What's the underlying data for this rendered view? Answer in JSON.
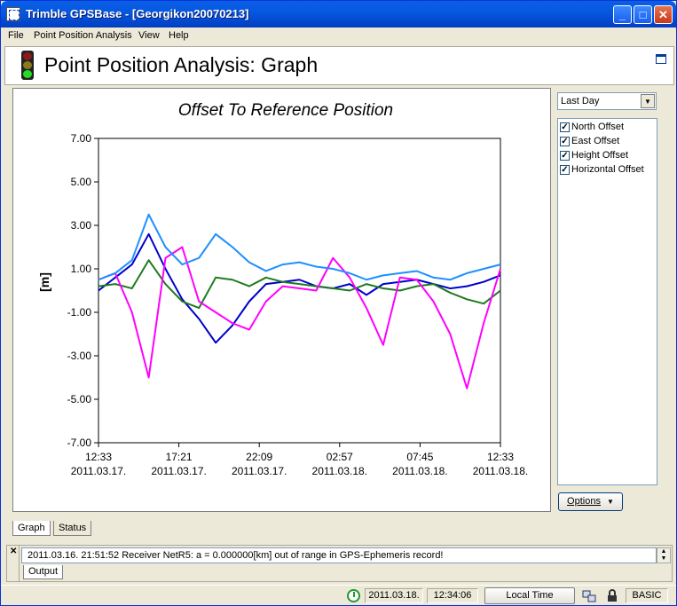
{
  "window": {
    "title": "Trimble GPSBase - [Georgikon20070213]",
    "minimize": "_",
    "maximize": "□",
    "close": "✕"
  },
  "menu": {
    "items": [
      {
        "label": "File"
      },
      {
        "label": "Point Position Analysis"
      },
      {
        "label": "View"
      },
      {
        "label": "Help"
      }
    ]
  },
  "header": {
    "title": "Point Position Analysis: Graph"
  },
  "side": {
    "range_select": "Last Day",
    "series": [
      {
        "label": "North Offset",
        "checked": true
      },
      {
        "label": "East Offset",
        "checked": true
      },
      {
        "label": "Height Offset",
        "checked": true
      },
      {
        "label": "Horizontal Offset",
        "checked": true
      }
    ],
    "options_label": "Options"
  },
  "tabs": {
    "graph": "Graph",
    "status": "Status"
  },
  "output": {
    "message": "2011.03.16. 21:51:52   Receiver NetR5:    a = 0.000000[km] out of range in GPS-Ephemeris record!",
    "tab": "Output"
  },
  "statusbar": {
    "date": "2011.03.18.",
    "time": "12:34:06",
    "time_mode": "Local Time",
    "mode": "BASIC"
  },
  "chart_data": {
    "type": "line",
    "title": "Offset To Reference Position",
    "ylabel": "[m]",
    "xlabel": "",
    "ylim": [
      -7,
      7
    ],
    "yticks": [
      "7.00",
      "5.00",
      "3.00",
      "1.00",
      "-1.00",
      "-3.00",
      "-5.00",
      "-7.00"
    ],
    "xticks": [
      {
        "time": "12:33",
        "date": "2011.03.17."
      },
      {
        "time": "17:21",
        "date": "2011.03.17."
      },
      {
        "time": "22:09",
        "date": "2011.03.17."
      },
      {
        "time": "02:57",
        "date": "2011.03.18."
      },
      {
        "time": "07:45",
        "date": "2011.03.18."
      },
      {
        "time": "12:33",
        "date": "2011.03.18."
      }
    ],
    "x_hours": [
      0,
      24
    ],
    "series": [
      {
        "name": "North Offset",
        "color": "#0000cc",
        "x": [
          0,
          1,
          2,
          3,
          4,
          5,
          6,
          7,
          8,
          9,
          10,
          11,
          12,
          13,
          14,
          15,
          16,
          17,
          18,
          19,
          20,
          21,
          22,
          23,
          24
        ],
        "y": [
          0.0,
          0.6,
          1.2,
          2.6,
          1.0,
          -0.4,
          -1.3,
          -2.4,
          -1.6,
          -0.5,
          0.3,
          0.4,
          0.5,
          0.2,
          0.1,
          0.3,
          -0.2,
          0.3,
          0.4,
          0.5,
          0.3,
          0.1,
          0.2,
          0.4,
          0.7
        ]
      },
      {
        "name": "East Offset",
        "color": "#1f7a1f",
        "x": [
          0,
          1,
          2,
          3,
          4,
          5,
          6,
          7,
          8,
          9,
          10,
          11,
          12,
          13,
          14,
          15,
          16,
          17,
          18,
          19,
          20,
          21,
          22,
          23,
          24
        ],
        "y": [
          0.2,
          0.3,
          0.1,
          1.4,
          0.3,
          -0.5,
          -0.8,
          0.6,
          0.5,
          0.2,
          0.6,
          0.4,
          0.3,
          0.2,
          0.1,
          0.0,
          0.3,
          0.1,
          0.0,
          0.2,
          0.3,
          -0.1,
          -0.4,
          -0.6,
          0.0
        ]
      },
      {
        "name": "Height Offset",
        "color": "#ff00ff",
        "x": [
          0,
          1,
          2,
          3,
          4,
          5,
          6,
          7,
          8,
          9,
          10,
          11,
          12,
          13,
          14,
          15,
          16,
          17,
          18,
          19,
          20,
          21,
          22,
          23,
          24
        ],
        "y": [
          0.5,
          0.8,
          -1.0,
          -4.0,
          1.5,
          2.0,
          -0.5,
          -1.0,
          -1.5,
          -1.8,
          -0.5,
          0.2,
          0.1,
          0.0,
          1.5,
          0.6,
          -0.8,
          -2.5,
          0.6,
          0.5,
          -0.5,
          -2.0,
          -4.5,
          -1.5,
          1.0
        ]
      },
      {
        "name": "Horizontal Offset",
        "color": "#1e90ff",
        "x": [
          0,
          1,
          2,
          3,
          4,
          5,
          6,
          7,
          8,
          9,
          10,
          11,
          12,
          13,
          14,
          15,
          16,
          17,
          18,
          19,
          20,
          21,
          22,
          23,
          24
        ],
        "y": [
          0.5,
          0.8,
          1.4,
          3.5,
          2.0,
          1.2,
          1.5,
          2.6,
          2.0,
          1.3,
          0.9,
          1.2,
          1.3,
          1.1,
          1.0,
          0.8,
          0.5,
          0.7,
          0.8,
          0.9,
          0.6,
          0.5,
          0.8,
          1.0,
          1.2
        ]
      }
    ]
  }
}
